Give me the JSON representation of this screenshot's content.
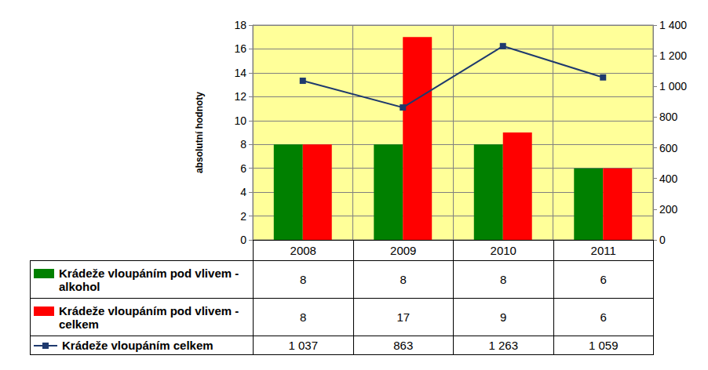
{
  "chart_data": {
    "type": "bar",
    "ylabel": "absolutní hodnoty",
    "categories": [
      "2008",
      "2009",
      "2010",
      "2011"
    ],
    "series": [
      {
        "name": "Krádeže vloupáním pod vlivem - alkohol",
        "color": "#008000",
        "type": "bar",
        "values": [
          8,
          8,
          8,
          6
        ]
      },
      {
        "name": "Krádeže vloupáním pod vlivem - celkem",
        "color": "#FF0000",
        "type": "bar",
        "values": [
          8,
          17,
          9,
          6
        ]
      },
      {
        "name": "Krádeže vloupáním celkem",
        "color": "#1F3A6E",
        "type": "line",
        "axis": "y2",
        "marker": "square",
        "values": [
          1037,
          863,
          1263,
          1059
        ],
        "value_labels": [
          "1 037",
          "863",
          "1 263",
          "1 059"
        ]
      }
    ],
    "ylim": [
      0,
      18
    ],
    "yticks": [
      0,
      2,
      4,
      6,
      8,
      10,
      12,
      14,
      16,
      18
    ],
    "y2lim": [
      0,
      1400
    ],
    "y2ticks": [
      0,
      200,
      400,
      600,
      800,
      {
        "value": 1000,
        "label": "1 000"
      },
      {
        "value": 1200,
        "label": "1 200"
      },
      {
        "value": 1400,
        "label": "1 400"
      }
    ],
    "grid": true,
    "data_labels": true
  }
}
